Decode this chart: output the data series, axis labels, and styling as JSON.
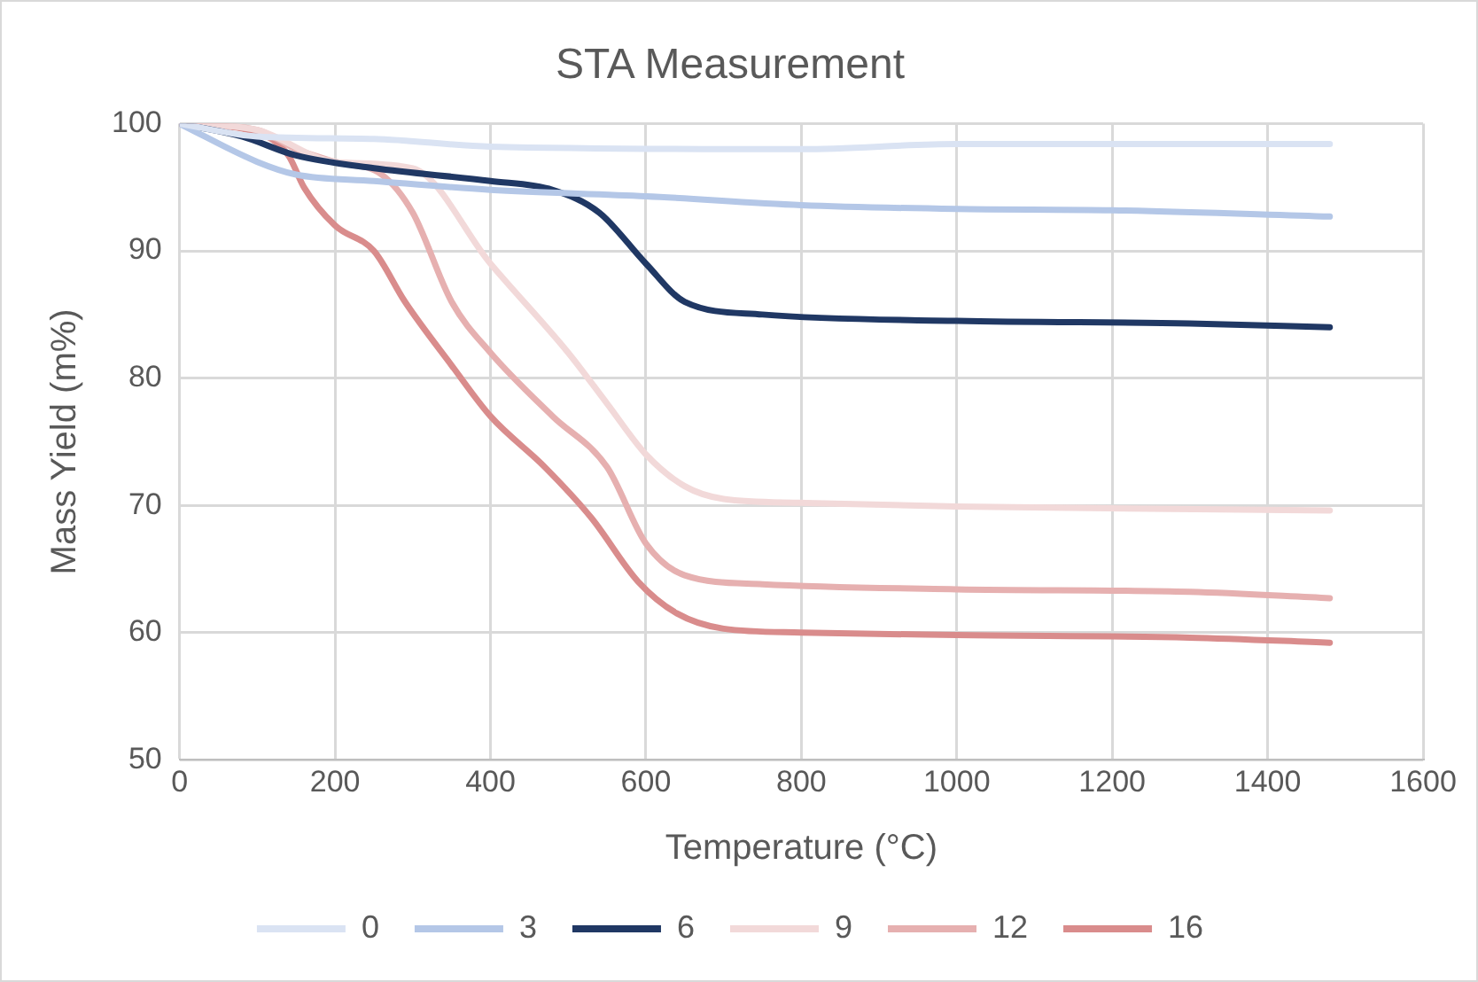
{
  "chart_data": {
    "type": "line",
    "title": "STA Measurement",
    "xlabel": "Temperature (°C)",
    "ylabel": "Mass Yield (m%)",
    "xlim": [
      0,
      1600
    ],
    "xticks": [
      0,
      200,
      400,
      600,
      800,
      1000,
      1200,
      1400,
      1600
    ],
    "ylim": [
      50,
      100
    ],
    "yticks": [
      50,
      60,
      70,
      80,
      90,
      100
    ],
    "grid": true,
    "legend": "bottom",
    "marker": "none",
    "line_style": "solid",
    "series": [
      {
        "name": "0",
        "color": "#dae3f3",
        "x": [
          0,
          100,
          250,
          400,
          800,
          1000,
          1480
        ],
        "values": [
          100,
          99,
          98.8,
          98.2,
          98,
          98.4,
          98.4
        ]
      },
      {
        "name": "3",
        "color": "#b4c7e7",
        "x": [
          0,
          100,
          150,
          250,
          400,
          600,
          800,
          1000,
          1200,
          1480
        ],
        "values": [
          100,
          97,
          96,
          95.5,
          94.8,
          94.3,
          93.6,
          93.3,
          93.2,
          92.7
        ]
      },
      {
        "name": "6",
        "color": "#203864",
        "x": [
          0,
          80,
          150,
          250,
          400,
          480,
          540,
          600,
          650,
          750,
          1000,
          1300,
          1480
        ],
        "values": [
          100,
          99,
          97.5,
          96.5,
          95.5,
          94.8,
          93,
          89,
          86,
          85,
          84.5,
          84.3,
          84
        ]
      },
      {
        "name": "9",
        "color": "#f2d9d9",
        "x": [
          0,
          100,
          200,
          300,
          400,
          500,
          550,
          600,
          650,
          700,
          800,
          1000,
          1480
        ],
        "values": [
          100,
          99.5,
          97,
          96.5,
          89,
          82,
          78,
          74,
          71.5,
          70.5,
          70.2,
          69.9,
          69.6
        ]
      },
      {
        "name": "12",
        "color": "#e6b0b0",
        "x": [
          0,
          100,
          150,
          200,
          260,
          300,
          350,
          400,
          480,
          550,
          600,
          650,
          750,
          1000,
          1300,
          1480
        ],
        "values": [
          100,
          99.5,
          98,
          97,
          96,
          93,
          86,
          82,
          77,
          73,
          67,
          64.5,
          63.8,
          63.4,
          63.2,
          62.7
        ]
      },
      {
        "name": "16",
        "color": "#d98c8c",
        "x": [
          0,
          100,
          140,
          160,
          200,
          250,
          290,
          350,
          400,
          470,
          530,
          590,
          640,
          700,
          800,
          1000,
          1300,
          1480
        ],
        "values": [
          100,
          99.3,
          97.5,
          95,
          92,
          90,
          86,
          81,
          77,
          73,
          69,
          64,
          61.5,
          60.3,
          60,
          59.8,
          59.6,
          59.2
        ]
      }
    ]
  }
}
